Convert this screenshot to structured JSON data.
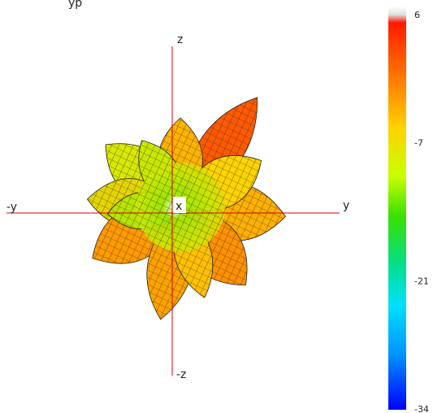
{
  "chart_data": {
    "type": "other",
    "title": "",
    "top_text_fragment": "yp",
    "axes": {
      "x": "x",
      "y": "y",
      "neg_y": "-y",
      "z": "z",
      "neg_z": "-z"
    },
    "colorbar": {
      "min": -34,
      "max": 6,
      "tick_labels": [
        "6",
        "-7",
        "-21",
        "-34"
      ],
      "tick_values": [
        6,
        -7,
        -21,
        -34
      ],
      "colors": [
        "#ffffff",
        "#ff2a00",
        "#ff8c00",
        "#ffd700",
        "#aaff00",
        "#33dd00",
        "#00e0a0",
        "#00d8ff",
        "#0090ff",
        "#0000ff"
      ]
    },
    "lobes": [
      {
        "name": "upper-right",
        "value": 6
      },
      {
        "name": "top",
        "value": -4
      },
      {
        "name": "upper-left",
        "value": -3
      },
      {
        "name": "left",
        "value": -3
      },
      {
        "name": "lower-left",
        "value": -2
      },
      {
        "name": "bottom",
        "value": -2
      },
      {
        "name": "right",
        "value": -4
      },
      {
        "name": "lower-right",
        "value": -3
      }
    ]
  }
}
